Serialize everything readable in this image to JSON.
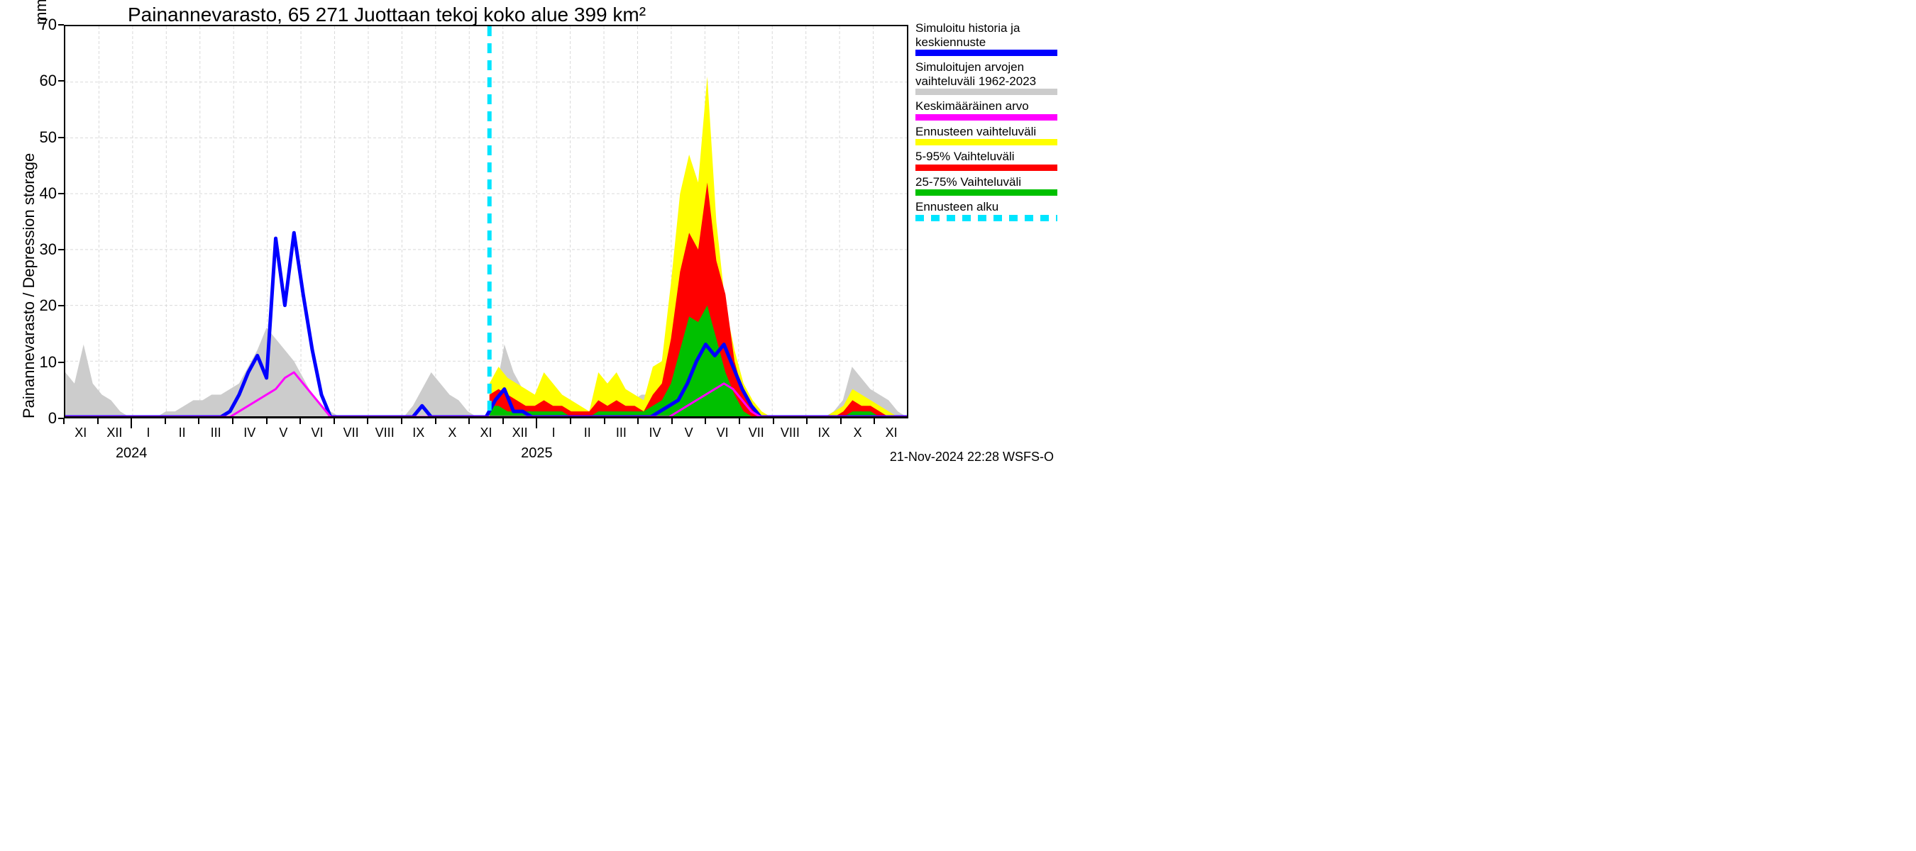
{
  "chart": {
    "type": "area-line-forecast",
    "title": "Painannevarasto, 65 271 Juottaan tekoj koko alue 399 km²",
    "y_axis": {
      "label": "Painannevarasto / Depression storage",
      "unit": "mm",
      "lim": [
        0,
        70
      ],
      "tick_step": 10,
      "ticks": [
        0,
        10,
        20,
        30,
        40,
        50,
        60,
        70
      ],
      "label_fontsize": 22,
      "tick_fontsize": 22
    },
    "x_axis": {
      "months": [
        "XI",
        "XII",
        "I",
        "II",
        "III",
        "IV",
        "V",
        "VI",
        "VII",
        "VIII",
        "IX",
        "X",
        "XI",
        "XII",
        "I",
        "II",
        "III",
        "IV",
        "V",
        "VI",
        "VII",
        "VIII",
        "IX",
        "X",
        "XI"
      ],
      "month_tick_style": "roman",
      "year_breaks": [
        {
          "after_index": 1,
          "label": "2024"
        },
        {
          "after_index": 13,
          "label": "2025"
        }
      ],
      "label_fontsize": 18
    },
    "background_color": "#ffffff",
    "grid_color": "#d9d9d9",
    "axis_color": "#000000",
    "forecast_start_month_index": 12.6,
    "series": {
      "historical_range": {
        "label_lines": [
          "Simuloitujen arvojen",
          "vaihteluväli 1962-2023"
        ],
        "color": "#cccccc",
        "upper": [
          8,
          6,
          13,
          6,
          4,
          3,
          1,
          0,
          0,
          0,
          0,
          1,
          1,
          2,
          3,
          3,
          4,
          4,
          5,
          6,
          9,
          12,
          16,
          14,
          12,
          10,
          7,
          4,
          2,
          1,
          0,
          0,
          0,
          0,
          0,
          0,
          0,
          0,
          2,
          5,
          8,
          6,
          4,
          3,
          1,
          0,
          0,
          4,
          13,
          8,
          5,
          4,
          3,
          1,
          0,
          0,
          0,
          0,
          1,
          1,
          2,
          3,
          3,
          4,
          4,
          5,
          6,
          10,
          18,
          25,
          23,
          18,
          13,
          9,
          5,
          2,
          0,
          0,
          0,
          0,
          0,
          0,
          0,
          0,
          1,
          3,
          9,
          7,
          5,
          4,
          3,
          1,
          0
        ],
        "lower_is_zero": true
      },
      "forecast_full": {
        "label": "Ennusteen vaihteluväli",
        "color": "#ffff00",
        "start_index": 12.6,
        "upper": [
          6,
          9,
          7,
          6,
          5,
          4,
          8,
          6,
          4,
          3,
          2,
          1,
          8,
          6,
          8,
          5,
          4,
          3,
          9,
          10,
          24,
          40,
          47,
          42,
          61,
          35,
          20,
          12,
          6,
          3,
          1,
          0,
          0,
          0,
          0,
          0,
          0,
          0,
          1,
          2,
          5,
          4,
          3,
          2,
          1,
          0,
          0
        ],
        "lower_is_zero": true
      },
      "forecast_5_95": {
        "label": "5-95% Vaihteluväli",
        "color": "#ff0000",
        "start_index": 12.6,
        "upper": [
          4,
          5,
          4,
          3,
          2,
          2,
          3,
          2,
          2,
          1,
          1,
          1,
          3,
          2,
          3,
          2,
          2,
          1,
          4,
          6,
          14,
          26,
          33,
          30,
          42,
          28,
          22,
          10,
          4,
          2,
          0,
          0,
          0,
          0,
          0,
          0,
          0,
          0,
          0,
          1,
          3,
          2,
          2,
          1,
          0,
          0,
          0
        ],
        "lower_is_zero": true
      },
      "forecast_25_75": {
        "label": "25-75% Vaihteluväli",
        "color": "#00c000",
        "start_index": 12.6,
        "upper": [
          2,
          2,
          1,
          1,
          1,
          1,
          1,
          1,
          1,
          0,
          0,
          0,
          1,
          1,
          1,
          1,
          1,
          1,
          2,
          3,
          6,
          12,
          18,
          17,
          20,
          14,
          8,
          4,
          1,
          0,
          0,
          0,
          0,
          0,
          0,
          0,
          0,
          0,
          0,
          0,
          1,
          1,
          1,
          0,
          0,
          0,
          0
        ],
        "lower_is_zero": true
      },
      "sim_history_and_median": {
        "label_lines": [
          "Simuloitu historia ja",
          "keskiennuste"
        ],
        "color": "#0000ff",
        "line_width": 5,
        "values": [
          0,
          0,
          0,
          0,
          0,
          0,
          0,
          0,
          0,
          0,
          0,
          0,
          0,
          0,
          0,
          0,
          0,
          0,
          1,
          4,
          8,
          11,
          7,
          32,
          20,
          33,
          22,
          12,
          4,
          0,
          0,
          0,
          0,
          0,
          0,
          0,
          0,
          0,
          0,
          2,
          0,
          0,
          0,
          0,
          0,
          0,
          0,
          3,
          5,
          1,
          1,
          0,
          0,
          0,
          0,
          0,
          0,
          0,
          0,
          0,
          0,
          0,
          0,
          0,
          0,
          1,
          2,
          3,
          6,
          10,
          13,
          11,
          13,
          9,
          5,
          2,
          0,
          0,
          0,
          0,
          0,
          0,
          0,
          0,
          0,
          0,
          0,
          0,
          0,
          0,
          0,
          0,
          0
        ]
      },
      "mean_value": {
        "label": "Keskimääräinen arvo",
        "color": "#ff00ff",
        "line_width": 3,
        "values": [
          0,
          0,
          0,
          0,
          0,
          0,
          0,
          0,
          0,
          0,
          0,
          0,
          0,
          0,
          0,
          0,
          0,
          0,
          0,
          1,
          2,
          3,
          4,
          5,
          7,
          8,
          6,
          4,
          2,
          0,
          0,
          0,
          0,
          0,
          0,
          0,
          0,
          0,
          0,
          0,
          0,
          0,
          0,
          0,
          0,
          0,
          0,
          0,
          0,
          0,
          0,
          0,
          0,
          0,
          0,
          0,
          0,
          0,
          0,
          0,
          0,
          0,
          0,
          0,
          0,
          0,
          0,
          1,
          2,
          3,
          4,
          5,
          6,
          5,
          3,
          1,
          0,
          0,
          0,
          0,
          0,
          0,
          0,
          0,
          0,
          0,
          0,
          0,
          0,
          0,
          0,
          0,
          0
        ]
      },
      "forecast_start_line": {
        "label": "Ennusteen alku",
        "color": "#00e5ff",
        "style": "dashed",
        "line_width": 6
      }
    },
    "legend_order": [
      "sim_history_and_median",
      "historical_range",
      "mean_value",
      "forecast_full",
      "forecast_5_95",
      "forecast_25_75",
      "forecast_start_line"
    ],
    "footer": "21-Nov-2024 22:28 WSFS-O",
    "title_fontsize": 28
  }
}
